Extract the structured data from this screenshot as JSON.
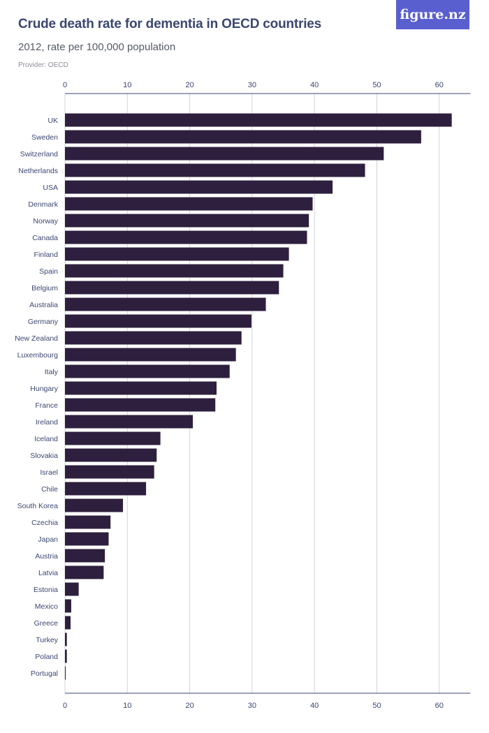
{
  "header": {
    "title": "Crude death rate for dementia in OECD countries",
    "subtitle": "2012, rate per 100,000 population",
    "provider": "Provider: OECD",
    "logo": "figure.nz"
  },
  "colors": {
    "bar": "#2e1f3e",
    "grid": "#d4d4d8",
    "axis": "#3b4770",
    "logo_bg": "#5a5fcf"
  },
  "chart_data": {
    "type": "bar",
    "orientation": "horizontal",
    "title": "Crude death rate for dementia in OECD countries",
    "subtitle": "2012, rate per 100,000 population",
    "xlabel": "",
    "ylabel": "",
    "xlim": [
      0,
      65
    ],
    "ticks": [
      0,
      10,
      20,
      30,
      40,
      50,
      60
    ],
    "grid": true,
    "categories": [
      "UK",
      "Sweden",
      "Switzerland",
      "Netherlands",
      "USA",
      "Denmark",
      "Norway",
      "Canada",
      "Finland",
      "Spain",
      "Belgium",
      "Australia",
      "Germany",
      "New Zealand",
      "Luxembourg",
      "Italy",
      "Hungary",
      "France",
      "Ireland",
      "Iceland",
      "Slovakia",
      "Israel",
      "Chile",
      "South Korea",
      "Czechia",
      "Japan",
      "Austria",
      "Latvia",
      "Estonia",
      "Mexico",
      "Greece",
      "Turkey",
      "Poland",
      "Portugal"
    ],
    "values": [
      62.0,
      57.1,
      51.1,
      48.1,
      42.9,
      39.7,
      39.1,
      38.8,
      35.9,
      35.0,
      34.3,
      32.2,
      29.9,
      28.3,
      27.4,
      26.4,
      24.3,
      24.1,
      20.5,
      15.3,
      14.7,
      14.3,
      13.0,
      9.3,
      7.3,
      7.0,
      6.4,
      6.2,
      2.2,
      1.0,
      0.9,
      0.3,
      0.3,
      0.1
    ]
  }
}
